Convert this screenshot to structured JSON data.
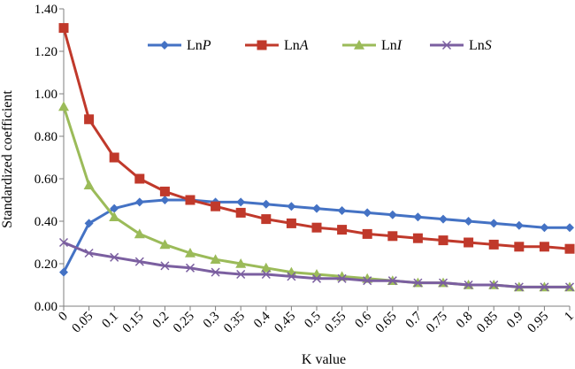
{
  "chart_data": {
    "type": "line",
    "title": "",
    "xlabel": "K value",
    "ylabel": "Standardized coefficient",
    "categories": [
      "0",
      "0.05",
      "0.1",
      "0.15",
      "0.2",
      "0.25",
      "0.3",
      "0.35",
      "0.4",
      "0.45",
      "0.5",
      "0.55",
      "0.6",
      "0.65",
      "0.7",
      "0.75",
      "0.8",
      "0.85",
      "0.9",
      "0.95",
      "1"
    ],
    "ylim": [
      0,
      1.4
    ],
    "yticks": [
      "0.00",
      "0.20",
      "0.40",
      "0.60",
      "0.80",
      "1.00",
      "1.20",
      "1.40"
    ],
    "grid": false,
    "legend_position": "top",
    "series": [
      {
        "name_prefix": "Ln",
        "name_var": "P",
        "color": "#4472C4",
        "marker": "diamond",
        "values": [
          0.16,
          0.39,
          0.46,
          0.49,
          0.5,
          0.5,
          0.49,
          0.49,
          0.48,
          0.47,
          0.46,
          0.45,
          0.44,
          0.43,
          0.42,
          0.41,
          0.4,
          0.39,
          0.38,
          0.37,
          0.37
        ]
      },
      {
        "name_prefix": "Ln",
        "name_var": "A",
        "color": "#C0392B",
        "marker": "square",
        "values": [
          1.31,
          0.88,
          0.7,
          0.6,
          0.54,
          0.5,
          0.47,
          0.44,
          0.41,
          0.39,
          0.37,
          0.36,
          0.34,
          0.33,
          0.32,
          0.31,
          0.3,
          0.29,
          0.28,
          0.28,
          0.27
        ]
      },
      {
        "name_prefix": "Ln",
        "name_var": "I",
        "color": "#9BBB59",
        "marker": "triangle",
        "values": [
          0.94,
          0.57,
          0.42,
          0.34,
          0.29,
          0.25,
          0.22,
          0.2,
          0.18,
          0.16,
          0.15,
          0.14,
          0.13,
          0.12,
          0.11,
          0.11,
          0.1,
          0.1,
          0.09,
          0.09,
          0.09
        ]
      },
      {
        "name_prefix": "Ln",
        "name_var": "S",
        "color": "#7B5FA0",
        "marker": "x",
        "values": [
          0.3,
          0.25,
          0.23,
          0.21,
          0.19,
          0.18,
          0.16,
          0.15,
          0.15,
          0.14,
          0.13,
          0.13,
          0.12,
          0.12,
          0.11,
          0.11,
          0.1,
          0.1,
          0.09,
          0.09,
          0.09
        ]
      }
    ]
  }
}
